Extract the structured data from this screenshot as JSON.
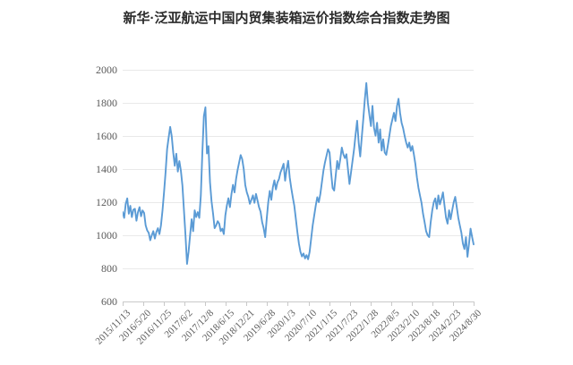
{
  "title": "新华·泛亚航运中国内贸集装箱运价指数综合指数走势图",
  "chart_data": {
    "type": "line",
    "title": "新华·泛亚航运中国内贸集装箱运价指数综合指数走势图",
    "xlabel": "",
    "ylabel": "",
    "ylim": [
      600,
      2000
    ],
    "y_ticks": [
      2000,
      1800,
      1600,
      1400,
      1200,
      1000,
      800,
      600
    ],
    "x_tick_labels": [
      "2015/11/13",
      "2016/5/20",
      "2016/11/25",
      "2017/6/2",
      "2017/12/8",
      "2018/6/15",
      "2018/12/21",
      "2019/6/28",
      "2020/1/3",
      "2020/7/10",
      "2021/1/15",
      "2021/7/23",
      "2022/1/28",
      "2022/8/5",
      "2023/2/10",
      "2023/8/18",
      "2024/2/23",
      "2024/8/30"
    ],
    "x_range": [
      "2015/11/13",
      "2024/8/30"
    ],
    "grid": "horizontal",
    "legend": "none",
    "colors": {
      "line": "#5b9bd5",
      "grid": "#e9e9e9",
      "axis": "#c9c9c9",
      "tick_label": "#595959",
      "title": "#2b2b2b"
    },
    "values": [
      1140,
      1105,
      1190,
      1223,
      1130,
      1178,
      1110,
      1155,
      1160,
      1088,
      1140,
      1170,
      1115,
      1150,
      1135,
      1060,
      1030,
      1015,
      970,
      1000,
      1025,
      980,
      1020,
      1043,
      1007,
      1060,
      1150,
      1260,
      1380,
      1520,
      1590,
      1655,
      1600,
      1500,
      1420,
      1493,
      1385,
      1448,
      1390,
      1300,
      1150,
      1000,
      827,
      900,
      1000,
      1097,
      1025,
      1151,
      1110,
      1140,
      1105,
      1240,
      1500,
      1720,
      1773,
      1494,
      1539,
      1320,
      1205,
      1130,
      1043,
      1060,
      1085,
      1070,
      1025,
      1040,
      1007,
      1120,
      1180,
      1224,
      1170,
      1250,
      1305,
      1259,
      1340,
      1395,
      1440,
      1485,
      1460,
      1400,
      1304,
      1260,
      1232,
      1190,
      1215,
      1241,
      1196,
      1250,
      1210,
      1169,
      1142,
      1080,
      1043,
      989,
      1100,
      1200,
      1268,
      1214,
      1290,
      1332,
      1277,
      1320,
      1340,
      1380,
      1404,
      1432,
      1330,
      1400,
      1450,
      1350,
      1286,
      1230,
      1178,
      1100,
      1020,
      950,
      900,
      872,
      890,
      860,
      880,
      855,
      900,
      980,
      1060,
      1120,
      1180,
      1230,
      1200,
      1250,
      1320,
      1390,
      1440,
      1480,
      1520,
      1500,
      1380,
      1285,
      1270,
      1360,
      1449,
      1400,
      1460,
      1530,
      1490,
      1467,
      1490,
      1400,
      1310,
      1380,
      1450,
      1520,
      1610,
      1692,
      1560,
      1476,
      1590,
      1700,
      1820,
      1920,
      1800,
      1728,
      1660,
      1782,
      1650,
      1602,
      1680,
      1560,
      1640,
      1512,
      1580,
      1500,
      1486,
      1540,
      1600,
      1660,
      1700,
      1740,
      1690,
      1780,
      1825,
      1740,
      1680,
      1647,
      1600,
      1560,
      1530,
      1560,
      1510,
      1539,
      1490,
      1430,
      1350,
      1287,
      1240,
      1196,
      1130,
      1080,
      1025,
      1000,
      989,
      1080,
      1150,
      1200,
      1223,
      1160,
      1241,
      1187,
      1220,
      1259,
      1180,
      1106,
      1070,
      1151,
      1097,
      1150,
      1200,
      1232,
      1170,
      1106,
      1060,
      1016,
      950,
      917,
      989,
      870,
      950,
      1040,
      990,
      945
    ]
  }
}
